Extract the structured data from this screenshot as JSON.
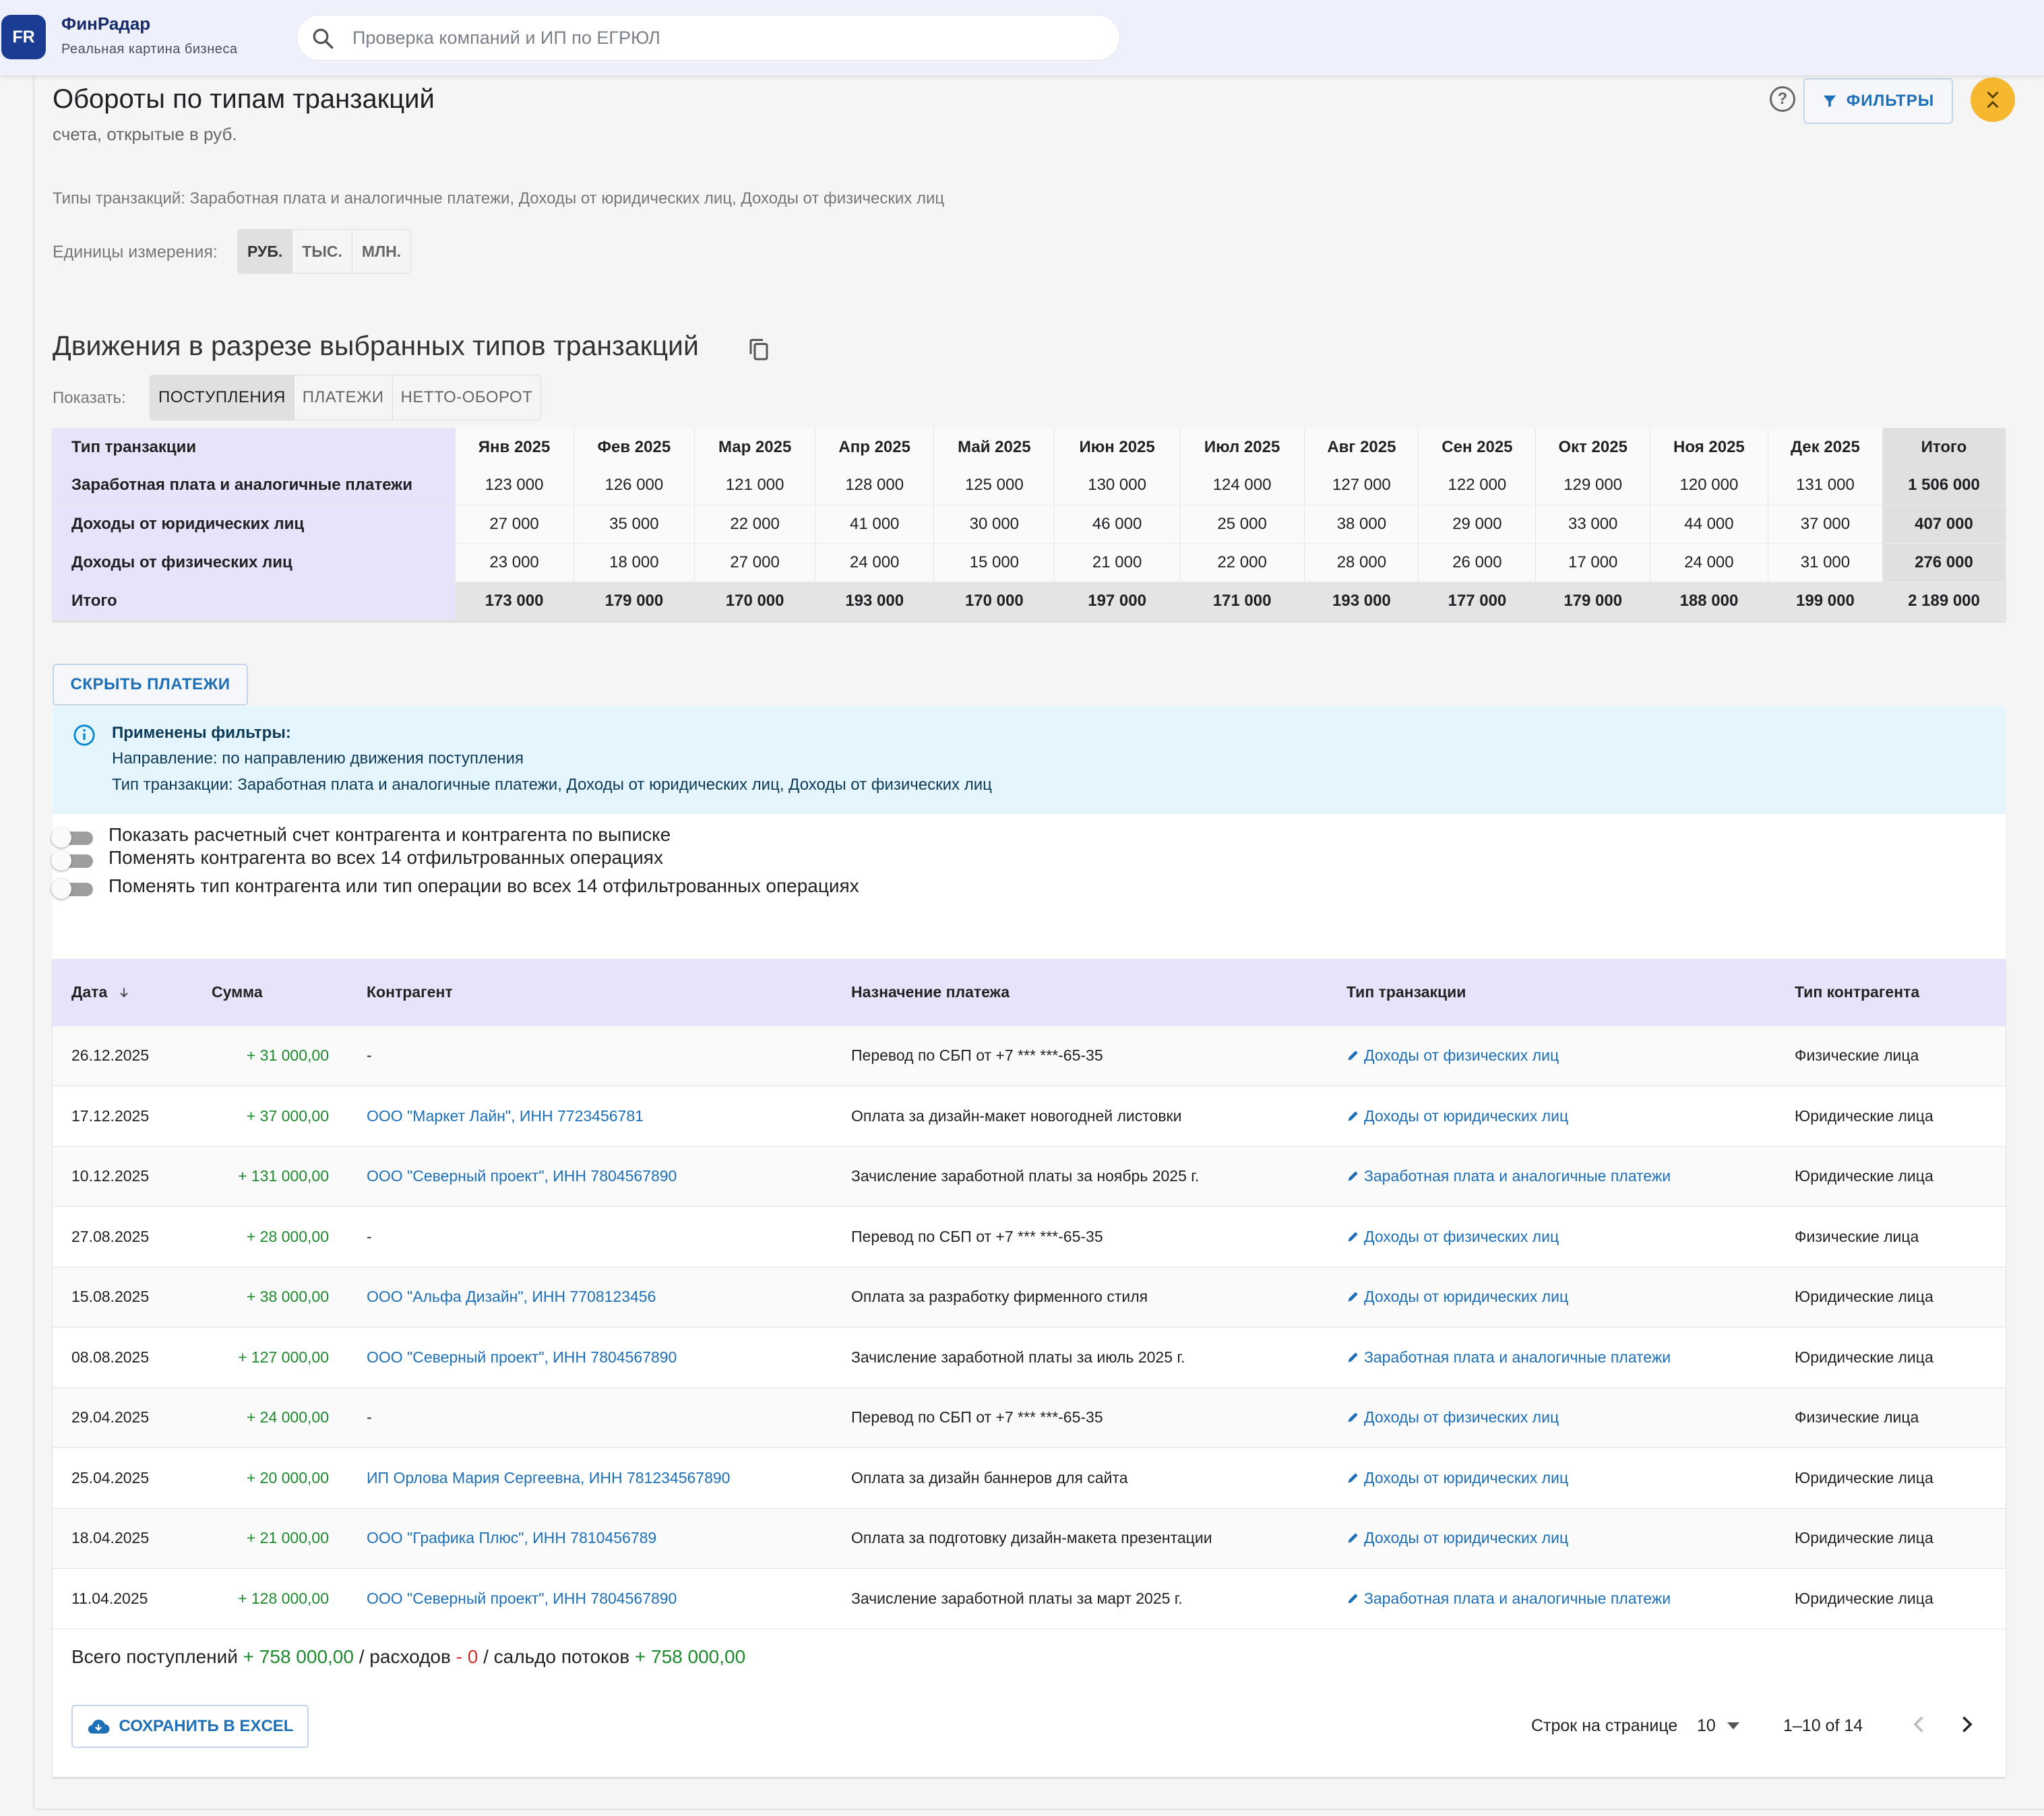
{
  "header": {
    "logo": "FR",
    "brand": "ФинРадар",
    "tagline": "Реальная картина бизнеса",
    "search_placeholder": "Проверка компаний и ИП по ЕГРЮЛ"
  },
  "page": {
    "title": "Обороты по типам транзакций",
    "subtitle": "счета, открытые в руб.",
    "filters_label": "ФИЛЬТРЫ",
    "types_line": "Типы транзакций: Заработная плата и аналогичные платежи, Доходы от юридических лиц, Доходы от физических лиц",
    "units_label": "Единицы измерения:",
    "units": [
      "РУБ.",
      "ТЫС.",
      "МЛН."
    ],
    "units_active": "РУБ."
  },
  "movements": {
    "title": "Движения в разрезе выбранных типов транзакций",
    "show_label": "Показать:",
    "tabs": [
      "ПОСТУПЛЕНИЯ",
      "ПЛАТЕЖИ",
      "НЕТТО-ОБОРОТ"
    ],
    "active_tab": "ПОСТУПЛЕНИЯ"
  },
  "summary": {
    "headers": [
      "Тип транзакции",
      "Янв 2025",
      "Фев 2025",
      "Мар 2025",
      "Апр 2025",
      "Май 2025",
      "Июн 2025",
      "Июл 2025",
      "Авг 2025",
      "Сен 2025",
      "Окт 2025",
      "Ноя 2025",
      "Дек 2025",
      "Итого"
    ],
    "rows": [
      [
        "Заработная плата и аналогичные платежи",
        "123 000",
        "126 000",
        "121 000",
        "128 000",
        "125 000",
        "130 000",
        "124 000",
        "127 000",
        "122 000",
        "129 000",
        "120 000",
        "131 000",
        "1 506 000"
      ],
      [
        "Доходы от юридических лиц",
        "27 000",
        "35 000",
        "22 000",
        "41 000",
        "30 000",
        "46 000",
        "25 000",
        "38 000",
        "29 000",
        "33 000",
        "44 000",
        "37 000",
        "407 000"
      ],
      [
        "Доходы от физических лиц",
        "23 000",
        "18 000",
        "27 000",
        "24 000",
        "15 000",
        "21 000",
        "22 000",
        "28 000",
        "26 000",
        "17 000",
        "24 000",
        "31 000",
        "276 000"
      ],
      [
        "Итого",
        "173 000",
        "179 000",
        "170 000",
        "193 000",
        "170 000",
        "197 000",
        "171 000",
        "193 000",
        "177 000",
        "179 000",
        "188 000",
        "199 000",
        "2 189 000"
      ]
    ]
  },
  "hide_payments": "СКРЫТЬ ПЛАТЕЖИ",
  "info": {
    "title": "Применены фильтры:",
    "line1": "Направление: по направлению движения поступления",
    "line2": "Тип транзакции: Заработная плата и аналогичные платежи, Доходы от юридических лиц, Доходы от физических лиц"
  },
  "options": [
    "Показать расчетный счет контрагента и контрагента по выписке",
    "Поменять контрагента во всех 14 отфильтрованных операциях",
    "Поменять тип контрагента или тип операции во всех 14 отфильтрованных операциях"
  ],
  "table": {
    "headers": {
      "date": "Дата",
      "sum": "Сумма",
      "counterparty": "Контрагент",
      "purpose": "Назначение платежа",
      "type": "Тип транзакции",
      "cp_type": "Тип контрагента"
    },
    "rows": [
      {
        "date": "26.12.2025",
        "sum": "+ 31 000,00",
        "cp": "-",
        "purpose": "Перевод по СБП от +7 *** ***-65-35",
        "type": "Доходы от физических лиц",
        "cp_type": "Физические лица"
      },
      {
        "date": "17.12.2025",
        "sum": "+ 37 000,00",
        "cp": "ООО \"Маркет Лайн\", ИНН 7723456781",
        "purpose": "Оплата за дизайн-макет новогодней листовки",
        "type": "Доходы от юридических лиц",
        "cp_type": "Юридические лица"
      },
      {
        "date": "10.12.2025",
        "sum": "+ 131 000,00",
        "cp": "ООО \"Северный проект\", ИНН 7804567890",
        "purpose": "Зачисление заработной платы за ноябрь 2025 г.",
        "type": "Заработная плата и аналогичные платежи",
        "cp_type": "Юридические лица"
      },
      {
        "date": "27.08.2025",
        "sum": "+ 28 000,00",
        "cp": "-",
        "purpose": "Перевод по СБП от +7 *** ***-65-35",
        "type": "Доходы от физических лиц",
        "cp_type": "Физические лица"
      },
      {
        "date": "15.08.2025",
        "sum": "+ 38 000,00",
        "cp": "ООО \"Альфа Дизайн\", ИНН 7708123456",
        "purpose": "Оплата за разработку фирменного стиля",
        "type": "Доходы от юридических лиц",
        "cp_type": "Юридические лица"
      },
      {
        "date": "08.08.2025",
        "sum": "+ 127 000,00",
        "cp": "ООО \"Северный проект\", ИНН 7804567890",
        "purpose": "Зачисление заработной платы за июль 2025 г.",
        "type": "Заработная плата и аналогичные платежи",
        "cp_type": "Юридические лица"
      },
      {
        "date": "29.04.2025",
        "sum": "+ 24 000,00",
        "cp": "-",
        "purpose": "Перевод по СБП от +7 *** ***-65-35",
        "type": "Доходы от физических лиц",
        "cp_type": "Физические лица"
      },
      {
        "date": "25.04.2025",
        "sum": "+ 20 000,00",
        "cp": "ИП Орлова Мария Сергеевна, ИНН 781234567890",
        "purpose": "Оплата за дизайн баннеров для сайта",
        "type": "Доходы от юридических лиц",
        "cp_type": "Юридические лица"
      },
      {
        "date": "18.04.2025",
        "sum": "+ 21 000,00",
        "cp": "ООО \"Графика Плюс\", ИНН 7810456789",
        "purpose": "Оплата за подготовку дизайн-макета презентации",
        "type": "Доходы от юридических лиц",
        "cp_type": "Юридические лица"
      },
      {
        "date": "11.04.2025",
        "sum": "+ 128 000,00",
        "cp": "ООО \"Северный проект\", ИНН 7804567890",
        "purpose": "Зачисление заработной платы за март 2025 г.",
        "type": "Заработная плата и аналогичные платежи",
        "cp_type": "Юридические лица"
      }
    ]
  },
  "totals": {
    "label_in": "Всего поступлений",
    "in": "+ 758 000,00",
    "label_out": "/ расходов",
    "out": "- 0",
    "label_saldo": "/ сальдо потоков",
    "saldo": "+ 758 000,00"
  },
  "footer": {
    "excel": "СОХРАНИТЬ В EXCEL",
    "rows_label": "Строк на странице",
    "rows_value": "10",
    "range": "1–10 of 14"
  }
}
